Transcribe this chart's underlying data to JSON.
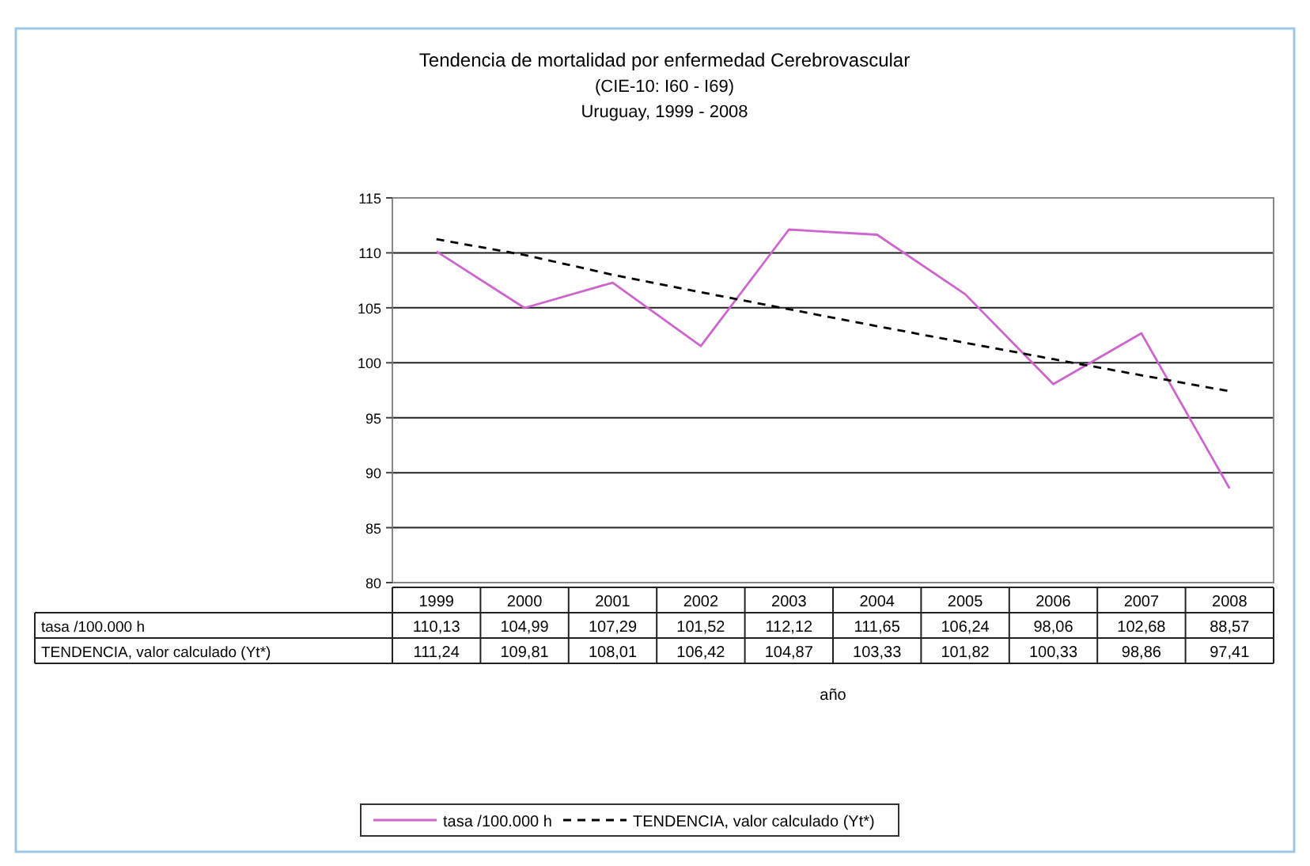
{
  "chart_data": {
    "type": "line",
    "title": "Tendencia de mortalidad por enfermedad Cerebrovascular",
    "subtitle": "(CIE-10: I60 - I69)\nUruguay, 1999 - 2008",
    "xlabel": "año",
    "categories": [
      "1999",
      "2000",
      "2001",
      "2002",
      "2003",
      "2004",
      "2005",
      "2006",
      "2007",
      "2008"
    ],
    "series": [
      {
        "name": "tasa /100.000 h",
        "color": "#cc66cc",
        "line_style": "solid",
        "values": [
          110.13,
          104.99,
          107.29,
          101.52,
          112.12,
          111.65,
          106.24,
          98.06,
          102.68,
          88.57
        ],
        "value_labels": [
          "110,13",
          "104,99",
          "107,29",
          "101,52",
          "112,12",
          "111,65",
          "106,24",
          "98,06",
          "102,68",
          "88,57"
        ]
      },
      {
        "name": "TENDENCIA, valor calculado (Yt*)",
        "color": "#000000",
        "line_style": "dashed",
        "values": [
          111.24,
          109.81,
          108.01,
          106.42,
          104.87,
          103.33,
          101.82,
          100.33,
          98.86,
          97.41
        ],
        "value_labels": [
          "111,24",
          "109,81",
          "108,01",
          "106,42",
          "104,87",
          "103,33",
          "101,82",
          "100,33",
          "98,86",
          "97,41"
        ]
      }
    ],
    "ylim": [
      80,
      115
    ],
    "yticks": [
      80,
      85,
      90,
      95,
      100,
      105,
      110,
      115
    ],
    "grid": "y",
    "legend": "bottom",
    "marker": "none"
  }
}
